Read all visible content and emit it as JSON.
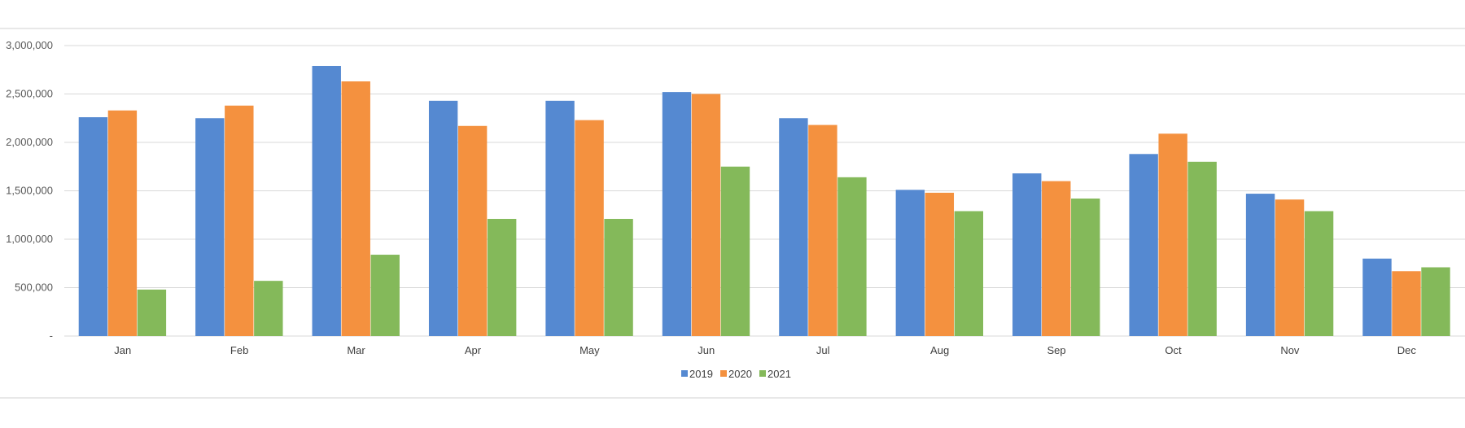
{
  "chart_data": {
    "type": "bar",
    "categories": [
      "Jan",
      "Feb",
      "Mar",
      "Apr",
      "May",
      "Jun",
      "Jul",
      "Aug",
      "Sep",
      "Oct",
      "Nov",
      "Dec"
    ],
    "series": [
      {
        "name": "2019",
        "color": "#5589d1",
        "values": [
          2260000,
          2250000,
          2790000,
          2430000,
          2430000,
          2520000,
          2250000,
          1510000,
          1680000,
          1880000,
          1470000,
          800000
        ]
      },
      {
        "name": "2020",
        "color": "#f4913f",
        "values": [
          2330000,
          2380000,
          2630000,
          2170000,
          2230000,
          2500000,
          2180000,
          1480000,
          1600000,
          2090000,
          1410000,
          670000
        ]
      },
      {
        "name": "2021",
        "color": "#84b95a",
        "values": [
          480000,
          570000,
          840000,
          1210000,
          1210000,
          1750000,
          1640000,
          1290000,
          1420000,
          1800000,
          1290000,
          710000
        ]
      }
    ],
    "y_ticks": [
      "-",
      "500,000",
      "1,000,000",
      "1,500,000",
      "2,000,000",
      "2,500,000",
      "3,000,000"
    ],
    "ylim": [
      0,
      3000000
    ],
    "grid": true,
    "legend_position": "bottom",
    "title": "",
    "xlabel": "",
    "ylabel": ""
  }
}
